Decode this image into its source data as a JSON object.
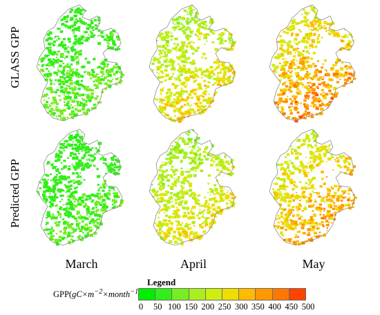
{
  "rows": [
    {
      "label": "GLASS GPP"
    },
    {
      "label": "Predicted GPP"
    }
  ],
  "columns": [
    {
      "label": "March"
    },
    {
      "label": "April"
    },
    {
      "label": "May"
    }
  ],
  "panels": [
    {
      "row": "GLASS GPP",
      "month": "March",
      "mean_gpp": 100
    },
    {
      "row": "GLASS GPP",
      "month": "April",
      "mean_gpp": 250
    },
    {
      "row": "GLASS GPP",
      "month": "May",
      "mean_gpp": 340
    },
    {
      "row": "Predicted GPP",
      "month": "March",
      "mean_gpp": 90
    },
    {
      "row": "Predicted GPP",
      "month": "April",
      "mean_gpp": 230
    },
    {
      "row": "Predicted GPP",
      "month": "May",
      "mean_gpp": 310
    }
  ],
  "legend": {
    "title": "Legend",
    "units_prefix": "GPP(",
    "units_main": "gC×m",
    "units_exp1": "−2",
    "units_mid": "×month",
    "units_exp2": "−1",
    "units_suffix": ")",
    "ticks": [
      "0",
      "50",
      "100",
      "150",
      "200",
      "250",
      "300",
      "350",
      "400",
      "450",
      "500"
    ],
    "colors": [
      "#00ee00",
      "#33ee1a",
      "#77ee22",
      "#aaee22",
      "#ccee11",
      "#eedd00",
      "#ffbb00",
      "#ff9900",
      "#ff7700",
      "#ff4400"
    ]
  }
}
